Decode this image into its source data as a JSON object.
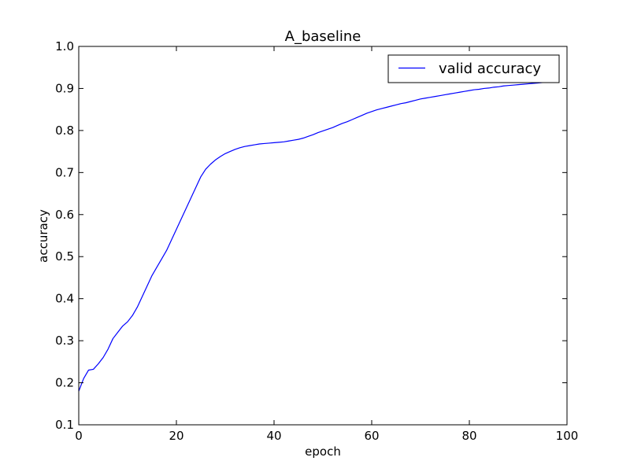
{
  "chart_data": {
    "type": "line",
    "title": "A_baseline",
    "xlabel": "epoch",
    "ylabel": "accuracy",
    "xlim": [
      0,
      100
    ],
    "ylim": [
      0.1,
      1.0
    ],
    "xticks": [
      "0",
      "20",
      "40",
      "60",
      "80",
      "100"
    ],
    "yticks": [
      "0.1",
      "0.2",
      "0.3",
      "0.4",
      "0.5",
      "0.6",
      "0.7",
      "0.8",
      "0.9",
      "1.0"
    ],
    "grid": false,
    "legend_position": "top-right",
    "colors": {
      "series": "#0000ff",
      "axes": "#000000"
    },
    "series": [
      {
        "name": "valid accuracy",
        "x": [
          0,
          1,
          2,
          3,
          4,
          5,
          6,
          7,
          8,
          9,
          10,
          11,
          12,
          13,
          14,
          15,
          16,
          17,
          18,
          19,
          20,
          21,
          22,
          23,
          24,
          25,
          26,
          27,
          28,
          29,
          30,
          31,
          32,
          33,
          34,
          35,
          36,
          37,
          38,
          39,
          40,
          41,
          42,
          43,
          44,
          45,
          46,
          47,
          48,
          49,
          50,
          51,
          52,
          53,
          54,
          55,
          56,
          57,
          58,
          59,
          60,
          61,
          62,
          63,
          64,
          65,
          66,
          67,
          68,
          69,
          70,
          71,
          72,
          73,
          74,
          75,
          76,
          77,
          78,
          79,
          80,
          81,
          82,
          83,
          84,
          85,
          86,
          87,
          88,
          89,
          90,
          91,
          92,
          93,
          94,
          95,
          96
        ],
        "values": [
          0.18,
          0.21,
          0.23,
          0.232,
          0.245,
          0.26,
          0.28,
          0.305,
          0.32,
          0.335,
          0.345,
          0.36,
          0.38,
          0.405,
          0.43,
          0.455,
          0.475,
          0.495,
          0.515,
          0.54,
          0.565,
          0.59,
          0.615,
          0.64,
          0.665,
          0.69,
          0.708,
          0.72,
          0.73,
          0.738,
          0.745,
          0.75,
          0.755,
          0.759,
          0.762,
          0.764,
          0.766,
          0.768,
          0.769,
          0.77,
          0.771,
          0.772,
          0.773,
          0.775,
          0.777,
          0.779,
          0.782,
          0.786,
          0.79,
          0.795,
          0.799,
          0.803,
          0.807,
          0.812,
          0.817,
          0.821,
          0.826,
          0.831,
          0.836,
          0.841,
          0.845,
          0.849,
          0.852,
          0.855,
          0.858,
          0.861,
          0.864,
          0.866,
          0.869,
          0.872,
          0.875,
          0.877,
          0.879,
          0.881,
          0.883,
          0.885,
          0.887,
          0.889,
          0.891,
          0.893,
          0.895,
          0.897,
          0.898,
          0.9,
          0.901,
          0.903,
          0.904,
          0.906,
          0.907,
          0.908,
          0.909,
          0.91,
          0.911,
          0.912,
          0.913,
          0.914,
          0.915
        ]
      }
    ]
  }
}
